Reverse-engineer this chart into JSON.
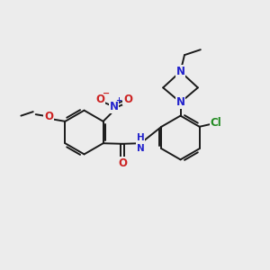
{
  "bg_color": "#ececec",
  "bond_color": "#1a1a1a",
  "N_color": "#2222cc",
  "O_color": "#cc2222",
  "Cl_color": "#228B22",
  "font_size": 8.5,
  "line_width": 1.4,
  "figsize": [
    3.0,
    3.0
  ],
  "dpi": 100,
  "xlim": [
    0,
    10
  ],
  "ylim": [
    0,
    10
  ]
}
